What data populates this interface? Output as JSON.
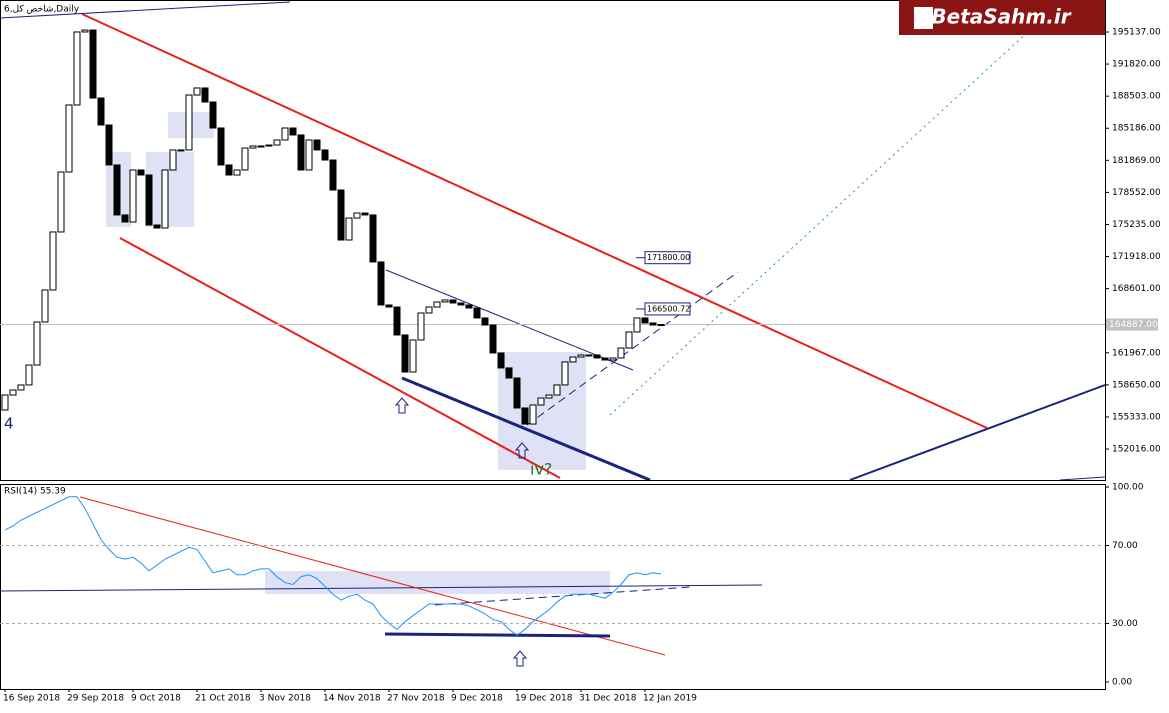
{
  "chart_data": [
    {
      "type": "candlestick",
      "title": "6,شاخص کل,Daily",
      "categories": [
        "16 Sep 2018",
        null,
        null,
        null,
        null,
        null,
        null,
        null,
        "29 Sep 2018",
        null,
        null,
        null,
        null,
        null,
        null,
        null,
        "9 Oct 2018",
        null,
        null,
        null,
        null,
        null,
        null,
        null,
        "21 Oct 2018",
        null,
        null,
        null,
        null,
        null,
        null,
        null,
        "3 Nov 2018",
        null,
        null,
        null,
        null,
        null,
        null,
        null,
        "14 Nov 2018",
        null,
        null,
        null,
        null,
        null,
        null,
        null,
        "27 Nov 2018",
        null,
        null,
        null,
        null,
        null,
        null,
        null,
        "9 Dec 2018",
        null,
        null,
        null,
        null,
        null,
        null,
        null,
        "19 Dec 2018",
        null,
        null,
        null,
        null,
        null,
        null,
        null,
        "31 Dec 2018",
        null,
        null,
        null,
        null,
        null,
        null,
        null,
        "12 Jan 2019",
        null,
        null
      ],
      "open": [
        156050,
        157600,
        158120,
        158640,
        160700,
        165150,
        168460,
        174460,
        180660,
        187590,
        195140,
        195340,
        188310,
        185520,
        181390,
        176220,
        175490,
        180870,
        180350,
        175180,
        174870,
        180870,
        182940,
        182940,
        188620,
        189350,
        187900,
        185210,
        181390,
        180350,
        180870,
        183140,
        183350,
        183350,
        183450,
        183970,
        185210,
        184490,
        180870,
        183970,
        182940,
        181900,
        178800,
        173630,
        175900,
        176420,
        176220,
        171360,
        166910,
        166700,
        163810,
        159980,
        163290,
        166080,
        166700,
        167220,
        167430,
        167120,
        166910,
        166600,
        165570,
        164840,
        161950,
        160400,
        159360,
        156260,
        154600,
        156570,
        157290,
        157600,
        158640,
        161020,
        161530,
        161740,
        161740,
        161430,
        161220,
        161430,
        162460,
        164120,
        165570,
        165050,
        164840
      ],
      "close": [
        157600,
        158120,
        158640,
        160700,
        165150,
        168460,
        174460,
        180660,
        187590,
        195140,
        195340,
        188310,
        185520,
        181390,
        176220,
        175490,
        180870,
        180350,
        175180,
        174870,
        180870,
        182940,
        182940,
        188620,
        189350,
        187900,
        185210,
        181390,
        180350,
        180870,
        183140,
        183350,
        183350,
        183450,
        183970,
        185210,
        184490,
        180870,
        183970,
        182940,
        181900,
        178800,
        173630,
        175900,
        176420,
        176220,
        171360,
        166910,
        166700,
        163810,
        159980,
        163290,
        166080,
        166700,
        167220,
        167430,
        167120,
        166910,
        166600,
        165570,
        164840,
        161950,
        160400,
        159360,
        156260,
        154600,
        156570,
        157290,
        157600,
        158640,
        161020,
        161530,
        161740,
        161740,
        161430,
        161220,
        161430,
        162460,
        164120,
        165570,
        165050,
        164840,
        164887
      ],
      "up_color": "#ffffff",
      "down_color": "#000000",
      "ylim": [
        148813,
        198446
      ],
      "yticks": [
        {
          "value": 195137,
          "label": "195137.00"
        },
        {
          "value": 191820,
          "label": "191820.00"
        },
        {
          "value": 188503,
          "label": "188503.00"
        },
        {
          "value": 185186,
          "label": "185186.00"
        },
        {
          "value": 181869,
          "label": "181869.00"
        },
        {
          "value": 178552,
          "label": "178552.00"
        },
        {
          "value": 175235,
          "label": "175235.00"
        },
        {
          "value": 171918,
          "label": "171918.00"
        },
        {
          "value": 168601,
          "label": "168601.00"
        },
        {
          "value": 161967,
          "label": "161967.00"
        },
        {
          "value": 158650,
          "label": "158650.00"
        },
        {
          "value": 155333,
          "label": "155333.00"
        },
        {
          "value": 152016,
          "label": "152016.00"
        }
      ],
      "last_price": {
        "value": 164887,
        "label": "164887.00"
      },
      "price_labels": [
        {
          "value": 171800,
          "label": "171800.00"
        },
        {
          "value": 166500.72,
          "label": "166500.72"
        }
      ],
      "wave_label": "4",
      "wave_label_2": "iv?"
    },
    {
      "type": "line",
      "title": "RSI(14) 55.39",
      "color": "#1e90ff",
      "values": [
        78,
        80,
        83,
        85,
        87,
        89,
        91,
        93,
        95,
        95,
        89,
        81,
        73,
        68,
        64,
        63,
        64,
        61,
        57,
        60,
        63,
        65,
        67,
        69,
        68,
        62,
        56,
        57,
        58,
        55,
        55,
        57,
        58,
        58,
        54,
        51,
        50,
        54,
        55,
        53,
        49,
        45,
        42,
        44,
        45,
        42,
        40,
        34,
        30,
        27,
        31,
        34,
        37,
        40,
        40,
        40,
        40,
        40,
        39,
        37,
        35,
        32,
        31,
        27,
        24,
        27,
        31,
        34,
        37,
        41,
        44,
        45,
        45,
        45,
        44,
        43,
        46,
        50,
        55,
        56,
        55,
        56,
        55.39
      ],
      "ylim": [
        0,
        100
      ],
      "yticks": [
        {
          "value": 100,
          "label": "100.00"
        },
        {
          "value": 70,
          "label": "70.00"
        },
        {
          "value": 30,
          "label": "30.00"
        },
        {
          "value": 0,
          "label": "0.00"
        }
      ]
    }
  ],
  "logo": "BetaSahm.ir"
}
